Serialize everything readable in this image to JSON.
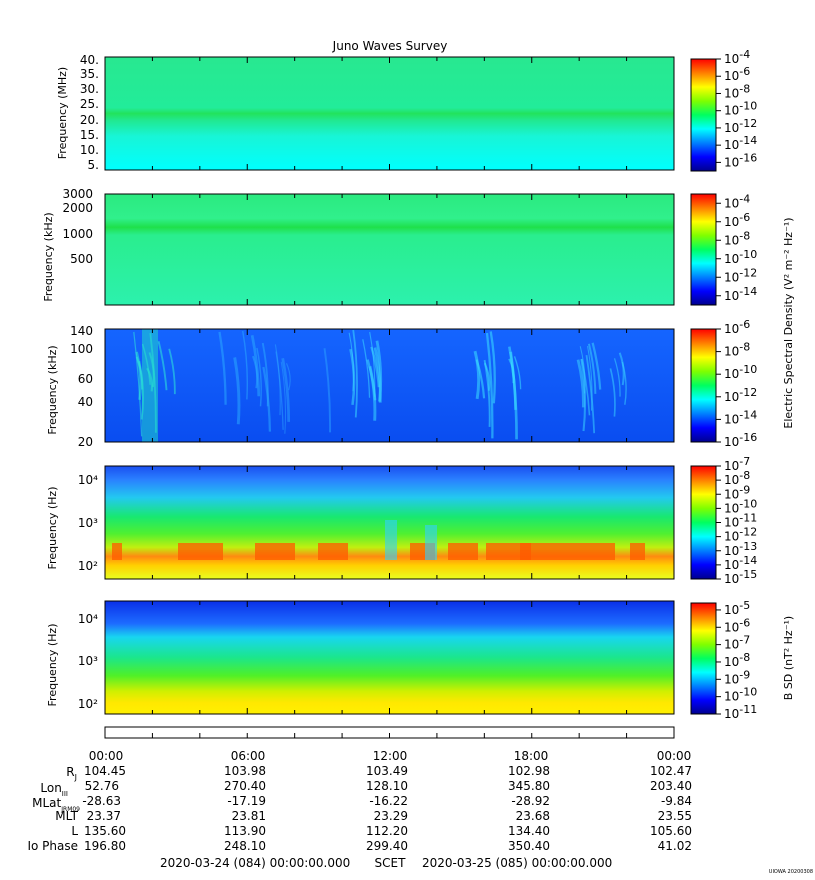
{
  "title": "Juno Waves Survey",
  "footer_stamp": "UIOWA 20200308",
  "colorbar_titles": {
    "electric": "Electric Spectral Density (V² m⁻² Hz⁻¹)",
    "magnetic": "B SD (nT² Hz⁻¹)"
  },
  "chart_data": [
    {
      "type": "heatmap",
      "ylabel": "Frequency (MHz)",
      "yticks": [
        "5.",
        "10.",
        "15.",
        "20.",
        "25.",
        "30.",
        "35.",
        "40."
      ],
      "colorbar": {
        "min_exp": -17,
        "max_exp": -4,
        "labels": [
          "-4",
          "-6",
          "-8",
          "-10",
          "-12",
          "-14",
          "-16"
        ]
      },
      "features": [
        "band near 21 MHz"
      ]
    },
    {
      "type": "heatmap",
      "ylabel": "Frequency (kHz)",
      "yticks": [
        "500",
        "1000",
        "2000",
        "3000"
      ],
      "colorbar": {
        "min_exp": -15,
        "max_exp": -3,
        "labels": [
          "-4",
          "-6",
          "-8",
          "-10",
          "-12",
          "-14"
        ]
      },
      "features": [
        "band near 1000 kHz"
      ]
    },
    {
      "type": "heatmap",
      "ylabel": "Frequency (kHz)",
      "yticks": [
        "20",
        "40",
        "60",
        "100",
        "140"
      ],
      "colorbar": {
        "min_exp": -16,
        "max_exp": -6,
        "labels": [
          "-6",
          "-8",
          "-10",
          "-12",
          "-14",
          "-16"
        ]
      }
    },
    {
      "type": "heatmap",
      "ylabel": "Frequency (Hz)",
      "yticks": [
        "10²",
        "10³",
        "10⁴"
      ],
      "colorbar": {
        "min_exp": -15,
        "max_exp": -7,
        "labels": [
          "-7",
          "-8",
          "-9",
          "-10",
          "-11",
          "-12",
          "-13",
          "-14",
          "-15"
        ]
      }
    },
    {
      "type": "heatmap",
      "ylabel": "Frequency (Hz)",
      "yticks": [
        "10²",
        "10³",
        "10⁴"
      ],
      "colorbar": {
        "min_exp": -11,
        "max_exp": -4.6,
        "labels": [
          "-5",
          "-6",
          "-7",
          "-8",
          "-9",
          "-10",
          "-11"
        ]
      }
    }
  ],
  "time_axis": {
    "ticks": [
      "00:00",
      "06:00",
      "12:00",
      "18:00",
      "00:00"
    ],
    "rows": [
      {
        "label": "RJ",
        "values": [
          "104.45",
          "103.98",
          "103.49",
          "102.98",
          "102.47"
        ]
      },
      {
        "label": "LonIII",
        "values": [
          "52.76",
          "270.40",
          "128.10",
          "345.80",
          "203.40"
        ]
      },
      {
        "label": "MLatJRM09",
        "values": [
          "-28.63",
          "-17.19",
          "-16.22",
          "-28.92",
          "-9.84"
        ]
      },
      {
        "label": "MLT",
        "values": [
          "23.37",
          "23.81",
          "23.29",
          "23.68",
          "23.55"
        ]
      },
      {
        "label": "L",
        "values": [
          "135.60",
          "113.90",
          "112.20",
          "134.40",
          "105.60"
        ]
      },
      {
        "label": "Io Phase",
        "values": [
          "196.80",
          "248.10",
          "299.40",
          "350.40",
          "41.02"
        ]
      }
    ],
    "start": "2020-03-24 (084) 00:00:00.000",
    "scet_label": "SCET",
    "end": "2020-03-25 (085) 00:00:00.000"
  }
}
